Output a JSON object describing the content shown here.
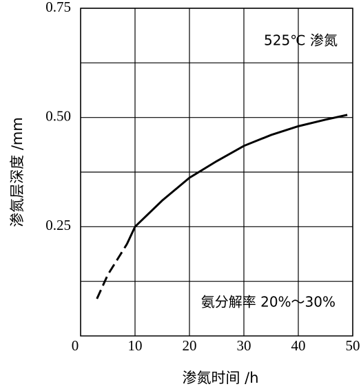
{
  "chart_data": {
    "type": "line",
    "xlabel": "渗氮时间 /h",
    "ylabel": "渗氮层深度 /mm",
    "annotations": [
      "525℃ 渗氮",
      "氨分解率 20%～30%"
    ],
    "xlim": [
      0,
      50
    ],
    "xticks": [
      0,
      10,
      20,
      30,
      40,
      50
    ],
    "ylim": [
      0,
      0.75
    ],
    "yticks": [
      0.25,
      {
        "value": 0.5,
        "label": "0.50"
      },
      0.75
    ],
    "minor_yticks": [
      0.125,
      0.375,
      0.625
    ],
    "grid": true,
    "series": [
      {
        "color": "#000000",
        "dashed": true,
        "x": [
          3,
          5,
          7,
          8.5
        ],
        "values": [
          0.085,
          0.14,
          0.18,
          0.21
        ]
      },
      {
        "color": "#000000",
        "dashed": false,
        "x": [
          8.5,
          10,
          15,
          20,
          25,
          30,
          35,
          40,
          45,
          49
        ],
        "values": [
          0.21,
          0.25,
          0.31,
          0.362,
          0.4,
          0.435,
          0.46,
          0.48,
          0.495,
          0.506
        ]
      }
    ]
  }
}
